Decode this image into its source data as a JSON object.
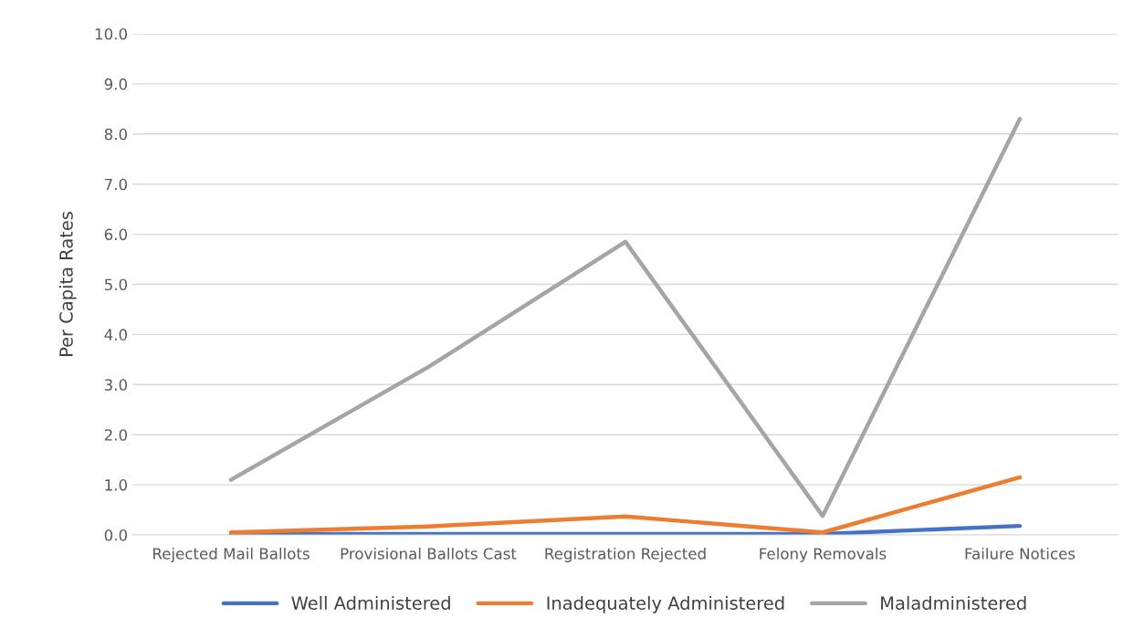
{
  "chart_data": {
    "type": "line",
    "ylabel": "Per Capita Rates",
    "categories": [
      "Rejected Mail Ballots",
      "Provisional Ballots Cast",
      "Registration Rejected",
      "Felony Removals",
      "Failure Notices"
    ],
    "series": [
      {
        "name": "Well Administered",
        "color": "#4472c4",
        "values": [
          0.02,
          0.02,
          0.02,
          0.02,
          0.18
        ]
      },
      {
        "name": "Inadequately Administered",
        "color": "#ed7d31",
        "values": [
          0.05,
          0.17,
          0.37,
          0.05,
          1.15
        ]
      },
      {
        "name": "Maladministered",
        "color": "#a5a5a5",
        "values": [
          1.1,
          3.35,
          5.85,
          0.38,
          8.3
        ]
      }
    ],
    "ylim": [
      0,
      10
    ],
    "yticks": [
      {
        "value": 0,
        "label": "0.0"
      },
      {
        "value": 1,
        "label": "1.0"
      },
      {
        "value": 2,
        "label": "2.0"
      },
      {
        "value": 3,
        "label": "3.0"
      },
      {
        "value": 4,
        "label": "4.0"
      },
      {
        "value": 5,
        "label": "5.0"
      },
      {
        "value": 6,
        "label": "6.0"
      },
      {
        "value": 7,
        "label": "7.0"
      },
      {
        "value": 8,
        "label": "8.0"
      },
      {
        "value": 9,
        "label": "9.0"
      },
      {
        "value": 10,
        "label": "10.0"
      }
    ],
    "grid": "y",
    "legend": "bottom",
    "marker": "none",
    "line_style": "solid"
  }
}
